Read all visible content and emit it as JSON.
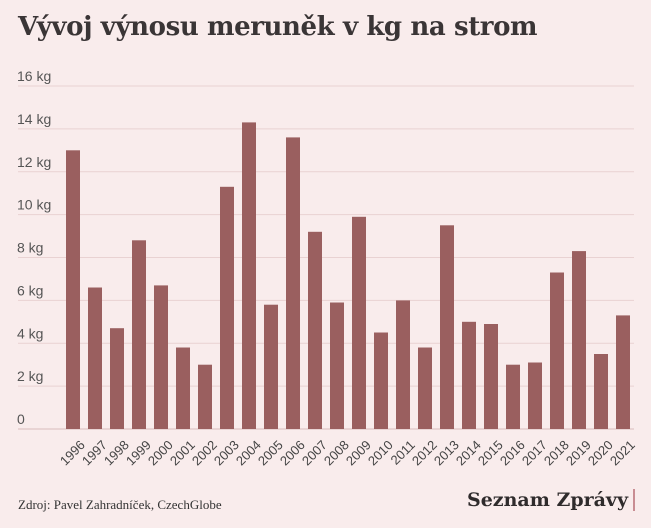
{
  "title": "Vývoj výnosu meruněk v kg na strom",
  "source": "Zdroj: Pavel Zahradníček, CzechGlobe",
  "brand": "Seznam Zprávy",
  "colors": {
    "background": "#f9ecec",
    "bar": "#9a5f5f",
    "grid": "#e9d2d2"
  },
  "chart_data": {
    "type": "bar",
    "title": "Vývoj výnosu meruněk v kg na strom",
    "xlabel": "",
    "ylabel": "",
    "unit": "kg",
    "ylim": [
      0,
      16
    ],
    "yticks": [
      0,
      2,
      4,
      6,
      8,
      10,
      12,
      14,
      16
    ],
    "ytick_labels": [
      "0",
      "2 kg",
      "4 kg",
      "6 kg",
      "8 kg",
      "10 kg",
      "12 kg",
      "14 kg",
      "16 kg"
    ],
    "grid": true,
    "categories": [
      "1996",
      "1997",
      "1998",
      "1999",
      "2000",
      "2001",
      "2002",
      "2003",
      "2004",
      "2005",
      "2006",
      "2007",
      "2008",
      "2009",
      "2010",
      "2011",
      "2012",
      "2013",
      "2014",
      "2015",
      "2016",
      "2017",
      "2018",
      "2019",
      "2020",
      "2021"
    ],
    "values": [
      13.0,
      6.6,
      4.7,
      8.8,
      6.7,
      3.8,
      3.0,
      11.3,
      14.3,
      5.8,
      13.6,
      9.2,
      5.9,
      9.9,
      4.5,
      6.0,
      3.8,
      9.5,
      5.0,
      4.9,
      3.0,
      3.1,
      7.3,
      8.3,
      3.5,
      5.3
    ]
  }
}
